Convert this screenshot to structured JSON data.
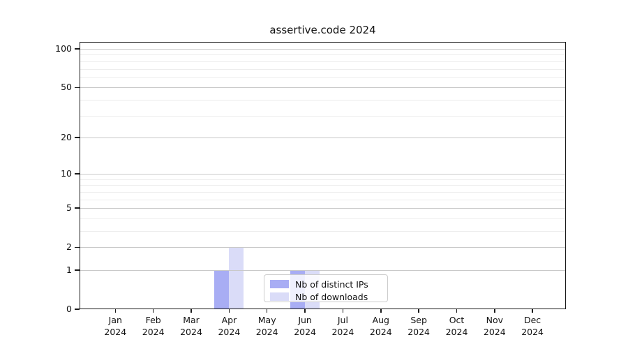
{
  "chart_data": {
    "type": "bar",
    "title": "assertive.code 2024",
    "x_tick_year": "2024",
    "categories": [
      "Jan",
      "Feb",
      "Mar",
      "Apr",
      "May",
      "Jun",
      "Jul",
      "Aug",
      "Sep",
      "Oct",
      "Nov",
      "Dec"
    ],
    "series": [
      {
        "name": "Nb of distinct IPs",
        "color": "#a8adf4",
        "values": [
          0,
          0,
          0,
          1,
          0,
          1,
          0,
          0,
          0,
          0,
          0,
          0
        ]
      },
      {
        "name": "Nb of downloads",
        "color": "#dadcf8",
        "values": [
          0,
          0,
          0,
          2,
          0,
          1,
          0,
          0,
          0,
          0,
          0,
          0
        ]
      }
    ],
    "y_scale": "log1p",
    "y_major_ticks": [
      0,
      1,
      2,
      5,
      10,
      20,
      50,
      100
    ],
    "y_minor_ticks": [
      3,
      4,
      6,
      7,
      8,
      9,
      30,
      40,
      60,
      70,
      80,
      90
    ],
    "ylim": [
      0,
      113
    ],
    "grid": "horizontal major+minor",
    "legend_position": "inside lower-center",
    "colors": {
      "major_grid": "#c9c9c9",
      "minor_grid": "#ededed",
      "axis": "#1a1a1a",
      "text": "#111111",
      "background": "#ffffff"
    }
  }
}
